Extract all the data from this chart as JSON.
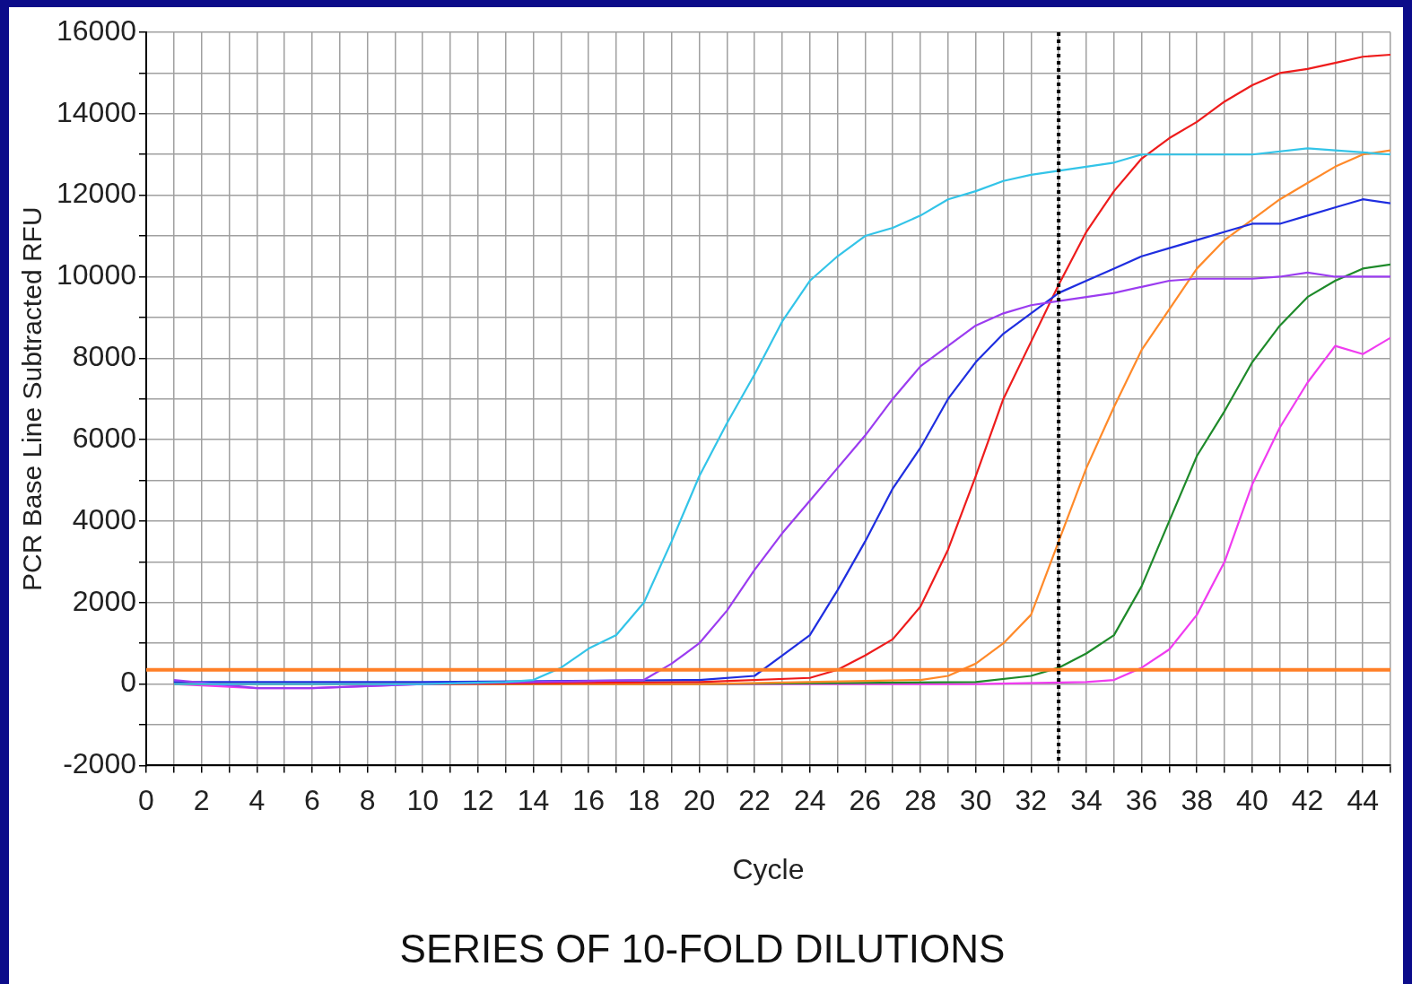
{
  "chart_data": {
    "type": "line",
    "title": "SERIES OF 10-FOLD DILUTIONS",
    "xlabel": "Cycle",
    "ylabel": "PCR Base Line Subtracted RFU",
    "xlim": [
      0,
      45
    ],
    "ylim": [
      -2000,
      16000
    ],
    "xticks": [
      0,
      {
        "value": 1,
        "label": null
      },
      2,
      {
        "value": 3,
        "label": null
      },
      4,
      {
        "value": 5,
        "label": null
      },
      6,
      {
        "value": 7,
        "label": null
      },
      8,
      {
        "value": 9,
        "label": null
      },
      10,
      {
        "value": 11,
        "label": null
      },
      12,
      {
        "value": 13,
        "label": null
      },
      14,
      {
        "value": 15,
        "label": null
      },
      16,
      {
        "value": 17,
        "label": null
      },
      18,
      {
        "value": 19,
        "label": null
      },
      20,
      {
        "value": 21,
        "label": null
      },
      22,
      {
        "value": 23,
        "label": null
      },
      24,
      {
        "value": 25,
        "label": null
      },
      26,
      {
        "value": 27,
        "label": null
      },
      28,
      {
        "value": 29,
        "label": null
      },
      30,
      {
        "value": 31,
        "label": null
      },
      32,
      {
        "value": 33,
        "label": null
      },
      34,
      {
        "value": 35,
        "label": null
      },
      36,
      {
        "value": 37,
        "label": null
      },
      38,
      {
        "value": 39,
        "label": null
      },
      40,
      {
        "value": 41,
        "label": null
      },
      42,
      {
        "value": 43,
        "label": null
      },
      44,
      {
        "value": 45,
        "label": null
      }
    ],
    "yticks": [
      -2000,
      {
        "value": -1000,
        "label": null
      },
      0,
      {
        "value": 1000,
        "label": null
      },
      2000,
      {
        "value": 3000,
        "label": null
      },
      4000,
      {
        "value": 5000,
        "label": null
      },
      6000,
      {
        "value": 7000,
        "label": null
      },
      8000,
      {
        "value": 9000,
        "label": null
      },
      10000,
      {
        "value": 11000,
        "label": null
      },
      12000,
      {
        "value": 13000,
        "label": null
      },
      14000,
      {
        "value": 15000,
        "label": null
      },
      16000
    ],
    "grid": true,
    "legend": false,
    "marker": "none",
    "line_style": "solid",
    "ref_lines": [
      {
        "axis": "y",
        "value": 350,
        "color": "#ff7f27",
        "line_style": "solid"
      },
      {
        "axis": "x",
        "value": 33,
        "color": "#000000",
        "line_style": "dotted"
      }
    ],
    "series": [
      {
        "color": "#33c4e8",
        "x": [
          1,
          10,
          13,
          14,
          15,
          16,
          17,
          18,
          19,
          20,
          21,
          22,
          23,
          24,
          25,
          26,
          27,
          28,
          29,
          30,
          31,
          32,
          33,
          34,
          35,
          36,
          38,
          40,
          42,
          44,
          45
        ],
        "values": [
          0,
          0,
          50,
          100,
          400,
          870,
          1200,
          2000,
          3500,
          5100,
          6400,
          7600,
          8900,
          9900,
          10500,
          11000,
          11200,
          11500,
          11900,
          12100,
          12350,
          12500,
          12600,
          12700,
          12800,
          13000,
          13000,
          13000,
          13150,
          13050,
          13000
        ]
      },
      {
        "color": "#9b3cf0",
        "x": [
          1,
          4,
          6,
          10,
          18,
          19,
          20,
          21,
          22,
          23,
          24,
          25,
          26,
          27,
          28,
          29,
          30,
          31,
          32,
          33,
          34,
          35,
          36,
          37,
          38,
          40,
          41,
          42,
          43,
          44,
          45
        ],
        "values": [
          100,
          -100,
          -100,
          0,
          100,
          500,
          1000,
          1800,
          2800,
          3700,
          4500,
          5300,
          6100,
          7000,
          7800,
          8300,
          8800,
          9100,
          9300,
          9400,
          9500,
          9600,
          9750,
          9900,
          9950,
          9950,
          10000,
          10100,
          10000,
          10000,
          10000
        ]
      },
      {
        "color": "#1f2ee0",
        "x": [
          1,
          10,
          20,
          22,
          23,
          24,
          25,
          26,
          27,
          28,
          29,
          30,
          31,
          32,
          33,
          34,
          35,
          36,
          37,
          38,
          39,
          40,
          41,
          42,
          43,
          44,
          45
        ],
        "values": [
          50,
          50,
          100,
          200,
          700,
          1200,
          2300,
          3500,
          4800,
          5800,
          7000,
          7900,
          8600,
          9100,
          9600,
          9900,
          10200,
          10500,
          10700,
          10900,
          11100,
          11300,
          11300,
          11500,
          11700,
          11900,
          11800
        ]
      },
      {
        "color": "#ee1c1c",
        "x": [
          1,
          10,
          20,
          24,
          25,
          26,
          27,
          28,
          29,
          30,
          31,
          32,
          33,
          34,
          35,
          36,
          37,
          38,
          39,
          40,
          41,
          42,
          43,
          44,
          45
        ],
        "values": [
          0,
          0,
          50,
          150,
          350,
          700,
          1100,
          1900,
          3300,
          5100,
          7000,
          8400,
          9800,
          11100,
          12100,
          12900,
          13400,
          13800,
          14300,
          14700,
          15000,
          15100,
          15250,
          15400,
          15450
        ]
      },
      {
        "color": "#ff8a2a",
        "x": [
          1,
          10,
          20,
          28,
          29,
          30,
          31,
          32,
          33,
          34,
          35,
          36,
          37,
          38,
          39,
          40,
          41,
          42,
          43,
          44,
          45
        ],
        "values": [
          0,
          0,
          0,
          100,
          200,
          500,
          1000,
          1700,
          3500,
          5300,
          6800,
          8200,
          9200,
          10200,
          10900,
          11400,
          11900,
          12300,
          12700,
          13000,
          13100
        ]
      },
      {
        "color": "#1e8a2a",
        "x": [
          1,
          10,
          20,
          30,
          32,
          33,
          34,
          35,
          36,
          37,
          38,
          39,
          40,
          41,
          42,
          43,
          44,
          45
        ],
        "values": [
          0,
          0,
          0,
          50,
          200,
          400,
          750,
          1200,
          2400,
          4000,
          5600,
          6700,
          7900,
          8800,
          9500,
          9900,
          10200,
          10300
        ]
      },
      {
        "color": "#f03cf0",
        "x": [
          1,
          4,
          6,
          10,
          20,
          30,
          34,
          35,
          36,
          37,
          38,
          39,
          40,
          41,
          42,
          43,
          44,
          45
        ],
        "values": [
          0,
          -100,
          -100,
          0,
          0,
          0,
          50,
          100,
          400,
          850,
          1700,
          3000,
          4900,
          6300,
          7400,
          8300,
          8100,
          8500
        ]
      }
    ]
  }
}
